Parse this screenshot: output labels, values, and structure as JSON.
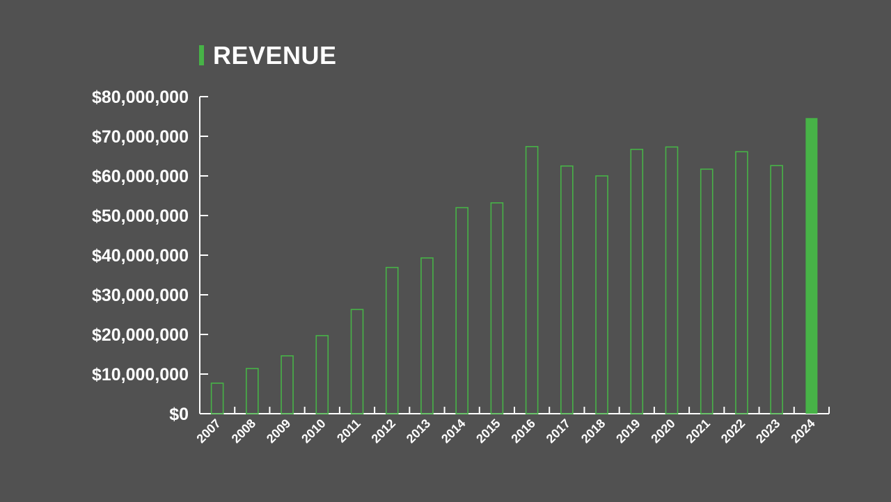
{
  "colors": {
    "background": "#515151",
    "accent": "#47b347",
    "axis": "#ffffff",
    "text": "#ffffff"
  },
  "chart_data": {
    "type": "bar",
    "title": "REVENUE",
    "xlabel": "",
    "ylabel": "",
    "ylim": [
      0,
      80000000
    ],
    "yticks": [
      0,
      10000000,
      20000000,
      30000000,
      40000000,
      50000000,
      60000000,
      70000000,
      80000000
    ],
    "ytick_labels": [
      "$0",
      "$10,000,000",
      "$20,000,000",
      "$30,000,000",
      "$40,000,000",
      "$50,000,000",
      "$60,000,000",
      "$70,000,000",
      "$80,000,000"
    ],
    "categories": [
      "2007",
      "2008",
      "2009",
      "2010",
      "2011",
      "2012",
      "2013",
      "2014",
      "2015",
      "2016",
      "2017",
      "2018",
      "2019",
      "2020",
      "2021",
      "2022",
      "2023",
      "2024"
    ],
    "values": [
      7700000,
      11400000,
      14600000,
      19700000,
      26300000,
      36900000,
      39300000,
      52000000,
      53200000,
      67400000,
      62500000,
      60000000,
      66700000,
      67300000,
      61700000,
      66100000,
      62600000,
      74600000
    ],
    "highlight": "2024",
    "grid": false,
    "legend": "none"
  }
}
